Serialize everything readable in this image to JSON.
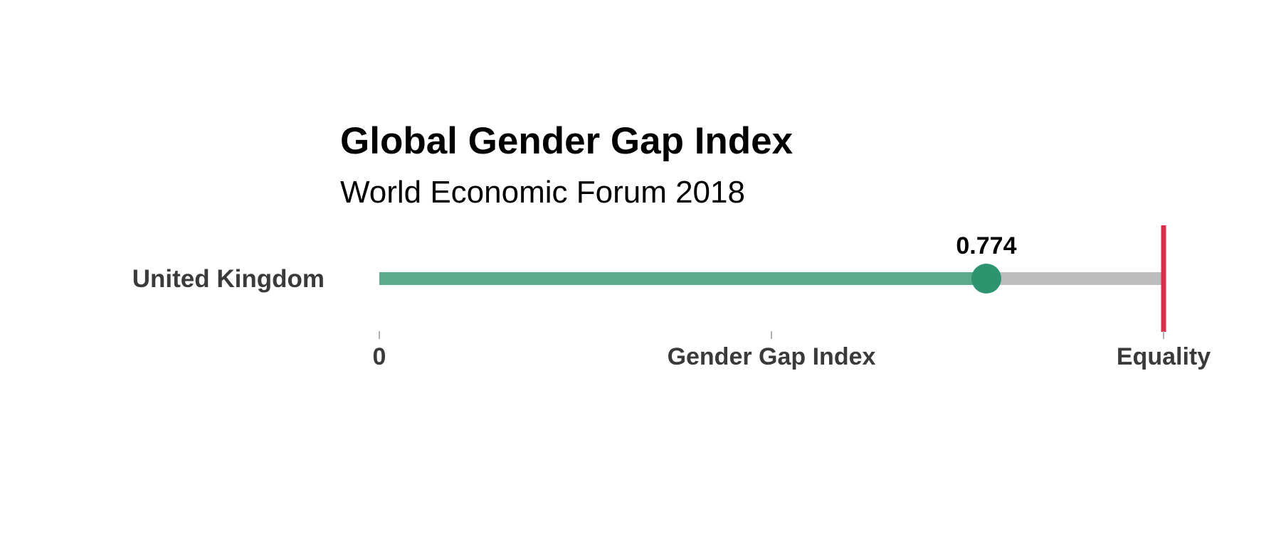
{
  "chart_data": {
    "type": "bar",
    "title": "Global Gender Gap Index",
    "subtitle": "World Economic Forum 2018",
    "categories": [
      "United Kingdom"
    ],
    "values": [
      0.774
    ],
    "value_labels": [
      "0.774"
    ],
    "xlim": [
      0,
      1
    ],
    "x_ticks": [
      {
        "value": 0,
        "label": "0"
      },
      {
        "value": 0.5,
        "label": "Gender Gap Index"
      },
      {
        "value": 1,
        "label": "Equality"
      }
    ],
    "reference_line": {
      "value": 1
    },
    "grid": false,
    "legend": "none",
    "colors": {
      "filled": "#5aab8d",
      "remaining": "#bdbdbd",
      "marker": "#2e9470",
      "equality_line": "#d7304e",
      "tick": "#b0b0b0"
    }
  }
}
